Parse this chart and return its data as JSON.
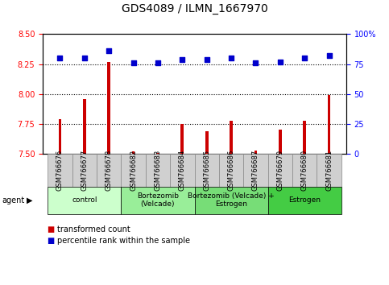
{
  "title": "GDS4089 / ILMN_1667970",
  "samples": [
    "GSM766676",
    "GSM766677",
    "GSM766678",
    "GSM766682",
    "GSM766683",
    "GSM766684",
    "GSM766685",
    "GSM766686",
    "GSM766687",
    "GSM766679",
    "GSM766680",
    "GSM766681"
  ],
  "transformed_count": [
    7.79,
    7.96,
    8.27,
    7.52,
    7.51,
    7.75,
    7.69,
    7.78,
    7.53,
    7.7,
    7.78,
    7.99
  ],
  "percentile_rank": [
    80,
    80,
    86,
    76,
    76,
    79,
    79,
    80,
    76,
    77,
    80,
    82
  ],
  "ylim_left": [
    7.5,
    8.5
  ],
  "ylim_right": [
    0,
    100
  ],
  "yticks_left": [
    7.5,
    7.75,
    8.0,
    8.25,
    8.5
  ],
  "yticks_right": [
    0,
    25,
    50,
    75,
    100
  ],
  "hlines": [
    7.75,
    8.0,
    8.25
  ],
  "bar_color": "#cc0000",
  "dot_color": "#0000cc",
  "groups": [
    {
      "label": "control",
      "start": 0,
      "end": 3,
      "color": "#ccffcc"
    },
    {
      "label": "Bortezomib\n(Velcade)",
      "start": 3,
      "end": 6,
      "color": "#99ee99"
    },
    {
      "label": "Bortezomib (Velcade) +\nEstrogen",
      "start": 6,
      "end": 9,
      "color": "#77dd77"
    },
    {
      "label": "Estrogen",
      "start": 9,
      "end": 12,
      "color": "#44cc44"
    }
  ],
  "agent_label": "agent",
  "legend_bar_label": "transformed count",
  "legend_dot_label": "percentile rank within the sample",
  "bar_width": 0.12,
  "tick_fontsize": 7,
  "title_fontsize": 10,
  "xtick_bg_color": "#d0d0d0",
  "xtick_border_color": "#888888"
}
